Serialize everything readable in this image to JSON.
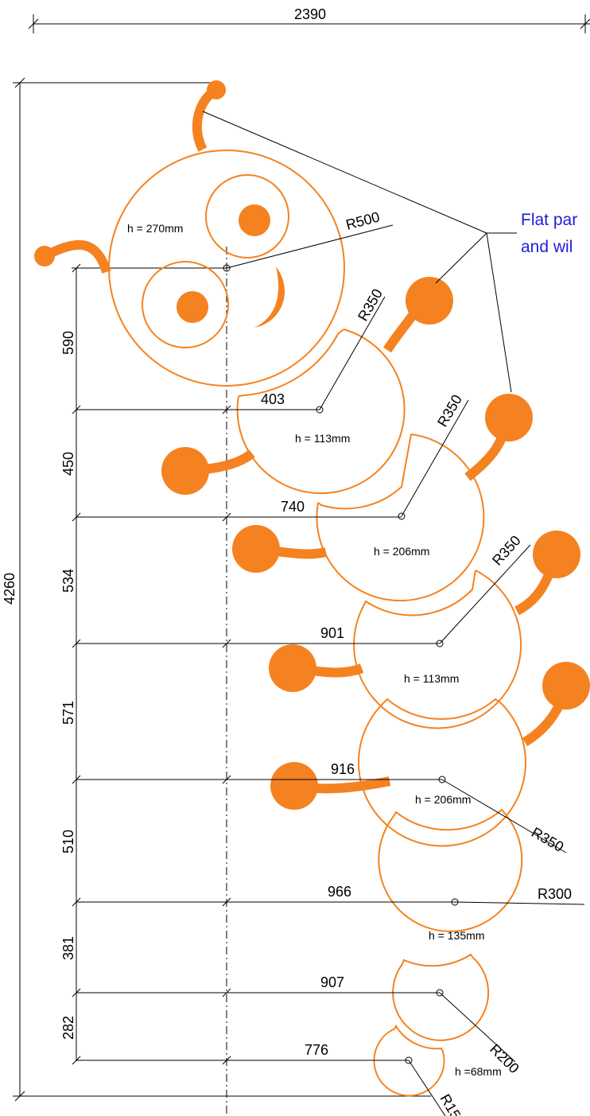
{
  "overall": {
    "width": "2390",
    "height": "4260"
  },
  "note": {
    "line1": "Flat par",
    "line2": "and wil"
  },
  "vertical_dims": [
    "590",
    "450",
    "534",
    "571",
    "510",
    "381",
    "282"
  ],
  "horizontal_dims": [
    "403",
    "740",
    "901",
    "916",
    "966",
    "907",
    "776"
  ],
  "radii": {
    "head": "R500",
    "seg1": "R350",
    "seg2": "R350",
    "seg3": "R350",
    "seg4": "R350",
    "seg5": "R300",
    "seg6": "R200",
    "seg7": "R15"
  },
  "heights": {
    "head": "h = 270mm",
    "seg1": "h = 113mm",
    "seg2": "h = 206mm",
    "seg3": "h = 113mm",
    "seg4": "h = 206mm",
    "seg5": "h = 135mm",
    "seg7": "h =68mm"
  },
  "colors": {
    "body": "#f58220",
    "dimension": "#000000",
    "note": "#1f1fd6"
  }
}
